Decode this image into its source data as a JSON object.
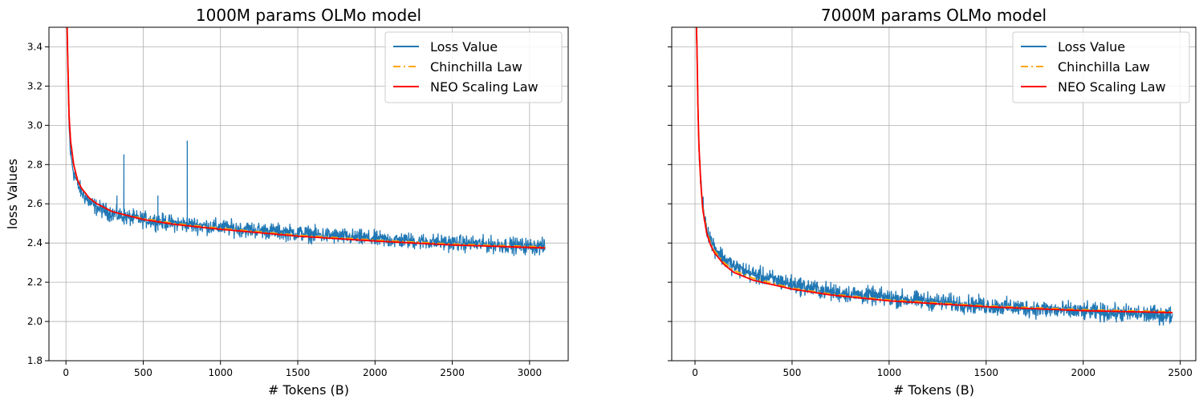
{
  "chart_data": [
    {
      "type": "line",
      "title": "1000M params OLMo model",
      "xlabel": "# Tokens (B)",
      "ylabel": "loss Values",
      "xlim": [
        -110,
        3250
      ],
      "ylim": [
        1.8,
        3.5
      ],
      "xticks": [
        0,
        500,
        1000,
        1500,
        2000,
        2500,
        3000
      ],
      "yticks": [
        1.8,
        2.0,
        2.2,
        2.4,
        2.6,
        2.8,
        3.0,
        3.2,
        3.4
      ],
      "grid": true,
      "legend_position": "top-right",
      "series": [
        {
          "name": "Loss Value",
          "color": "#1f77b4",
          "style": "solid",
          "x": [
            5,
            10,
            20,
            30,
            50,
            75,
            100,
            150,
            200,
            300,
            400,
            500,
            700,
            1000,
            1500,
            2000,
            2500,
            3100
          ],
          "y": [
            3.6,
            3.35,
            3.0,
            2.85,
            2.76,
            2.7,
            2.66,
            2.61,
            2.58,
            2.55,
            2.53,
            2.52,
            2.5,
            2.48,
            2.45,
            2.42,
            2.4,
            2.38
          ],
          "noise": 0.02,
          "spikes": [
            {
              "x": 330,
              "y": 2.64
            },
            {
              "x": 375,
              "y": 2.85
            },
            {
              "x": 595,
              "y": 2.64
            },
            {
              "x": 785,
              "y": 2.92
            }
          ]
        },
        {
          "name": "Chinchilla Law",
          "color": "#ffa500",
          "style": "dashdot",
          "x": [
            5,
            10,
            20,
            30,
            50,
            75,
            100,
            150,
            200,
            300,
            400,
            500,
            700,
            1000,
            1500,
            2000,
            2500,
            3100
          ],
          "y": [
            3.6,
            3.4,
            3.05,
            2.92,
            2.8,
            2.72,
            2.68,
            2.63,
            2.6,
            2.56,
            2.54,
            2.525,
            2.5,
            2.475,
            2.44,
            2.415,
            2.395,
            2.38
          ]
        },
        {
          "name": "NEO Scaling Law",
          "color": "#ff0000",
          "style": "solid",
          "x": [
            5,
            10,
            20,
            30,
            50,
            75,
            100,
            150,
            200,
            300,
            400,
            500,
            700,
            1000,
            1500,
            2000,
            2500,
            3100
          ],
          "y": [
            3.6,
            3.4,
            3.05,
            2.92,
            2.8,
            2.72,
            2.68,
            2.63,
            2.6,
            2.56,
            2.54,
            2.52,
            2.495,
            2.47,
            2.435,
            2.41,
            2.39,
            2.375
          ]
        }
      ]
    },
    {
      "type": "line",
      "title": "7000M params OLMo model",
      "xlabel": "# Tokens (B)",
      "ylabel": "",
      "xlim": [
        -120,
        2580
      ],
      "ylim": [
        1.8,
        3.5
      ],
      "xticks": [
        0,
        500,
        1000,
        1500,
        2000,
        2500
      ],
      "yticks": [
        1.8,
        2.0,
        2.2,
        2.4,
        2.6,
        2.8,
        3.0,
        3.2,
        3.4
      ],
      "show_ytick_labels": false,
      "grid": true,
      "legend_position": "top-right",
      "series": [
        {
          "name": "Loss Value",
          "color": "#1f77b4",
          "style": "solid",
          "x": [
            5,
            10,
            15,
            20,
            30,
            40,
            60,
            80,
            100,
            150,
            200,
            300,
            500,
            700,
            1000,
            1500,
            2000,
            2460
          ],
          "y": [
            3.6,
            3.4,
            3.1,
            2.9,
            2.7,
            2.6,
            2.48,
            2.42,
            2.38,
            2.32,
            2.28,
            2.24,
            2.19,
            2.15,
            2.12,
            2.08,
            2.05,
            2.03
          ],
          "noise": 0.022
        },
        {
          "name": "Chinchilla Law",
          "color": "#ffa500",
          "style": "dashdot",
          "x": [
            5,
            10,
            15,
            20,
            30,
            40,
            60,
            80,
            100,
            150,
            200,
            300,
            500,
            700,
            1000,
            1500,
            2000,
            2460
          ],
          "y": [
            3.6,
            3.4,
            3.1,
            2.9,
            2.7,
            2.58,
            2.46,
            2.4,
            2.36,
            2.3,
            2.26,
            2.22,
            2.17,
            2.14,
            2.11,
            2.08,
            2.06,
            2.05
          ]
        },
        {
          "name": "NEO Scaling Law",
          "color": "#ff0000",
          "style": "solid",
          "x": [
            5,
            10,
            15,
            20,
            30,
            40,
            60,
            80,
            100,
            150,
            200,
            300,
            500,
            700,
            1000,
            1500,
            2000,
            2460
          ],
          "y": [
            3.6,
            3.4,
            3.1,
            2.9,
            2.7,
            2.57,
            2.45,
            2.39,
            2.35,
            2.29,
            2.25,
            2.21,
            2.165,
            2.135,
            2.105,
            2.075,
            2.055,
            2.045
          ]
        }
      ]
    }
  ]
}
